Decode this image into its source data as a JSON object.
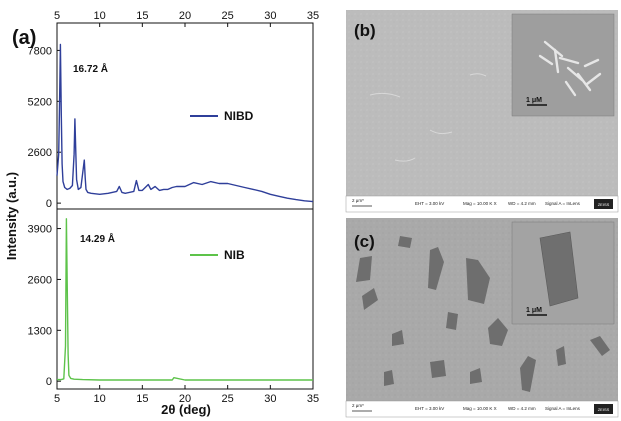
{
  "panels": {
    "a": "(a)",
    "b": "(b)",
    "c": "(c)"
  },
  "chart_data": [
    {
      "type": "line",
      "panel": "(a) top",
      "xlim": [
        5,
        35
      ],
      "x_ticks": [
        5,
        10,
        15,
        20,
        25,
        30,
        35
      ],
      "x_tick_labels": [
        "5",
        "10",
        "15",
        "20",
        "25",
        "30",
        "35"
      ],
      "x_ticks_position": "top",
      "ylim": [
        -300,
        9200
      ],
      "y_ticks": [
        0,
        2600,
        5200,
        7800
      ],
      "y_tick_labels": [
        "0",
        "2600",
        "5200",
        "7800"
      ],
      "series": [
        {
          "name": "NIBD",
          "color": "#2f3f9a",
          "x": [
            5.0,
            5.2,
            5.3,
            5.4,
            5.5,
            5.6,
            5.7,
            5.9,
            6.2,
            6.5,
            6.8,
            7.0,
            7.1,
            7.2,
            7.3,
            7.5,
            7.8,
            8.0,
            8.2,
            8.3,
            8.4,
            8.6,
            9.0,
            10.0,
            11.0,
            12.0,
            12.3,
            12.6,
            13.0,
            14.0,
            14.3,
            14.6,
            15.0,
            15.7,
            16.0,
            16.5,
            17.0,
            17.5,
            18.0,
            18.5,
            19.0,
            20.0,
            21.0,
            22.0,
            23.0,
            24.0,
            25.0,
            26.0,
            27.0,
            28.0,
            29.0,
            30.0,
            31.0,
            32.0,
            33.0,
            34.0,
            35.0
          ],
          "y": [
            1400,
            2500,
            5200,
            8100,
            4500,
            2000,
            1100,
            800,
            700,
            750,
            900,
            2500,
            4300,
            2600,
            1200,
            700,
            800,
            1500,
            2200,
            1300,
            700,
            550,
            500,
            450,
            500,
            600,
            850,
            550,
            500,
            600,
            1150,
            650,
            650,
            950,
            700,
            850,
            650,
            700,
            700,
            800,
            850,
            850,
            1050,
            950,
            1100,
            1000,
            1000,
            900,
            800,
            700,
            600,
            450,
            350,
            250,
            180,
            120,
            80
          ]
        }
      ],
      "annotations": [
        "16.72 Å"
      ]
    },
    {
      "type": "line",
      "panel": "(a) bottom",
      "xlim": [
        5,
        35
      ],
      "x_ticks": [
        5,
        10,
        15,
        20,
        25,
        30,
        35
      ],
      "x_tick_labels": [
        "5",
        "10",
        "15",
        "20",
        "25",
        "30",
        "35"
      ],
      "xlabel": "2θ (deg)",
      "ylim": [
        -200,
        4400
      ],
      "y_ticks": [
        0,
        1300,
        2600,
        3900
      ],
      "y_tick_labels": [
        "0",
        "1300",
        "2600",
        "3900"
      ],
      "series": [
        {
          "name": "NIB",
          "color": "#5dc34a",
          "x": [
            5.0,
            5.5,
            5.8,
            6.0,
            6.1,
            6.2,
            6.3,
            6.4,
            6.6,
            7.0,
            8.0,
            10.0,
            12.0,
            15.0,
            18.5,
            18.7,
            20.0,
            25.0,
            30.0,
            35.0
          ],
          "y": [
            40,
            40,
            60,
            900,
            4150,
            2500,
            700,
            150,
            70,
            50,
            40,
            30,
            30,
            30,
            30,
            90,
            30,
            30,
            30,
            30
          ]
        }
      ],
      "annotations": [
        "14.29 Å"
      ]
    }
  ],
  "ylabel": "Intensity (a.u.)",
  "sem": {
    "b": {
      "scale_main": "2 μm*",
      "inset_scale": "1 μM",
      "info": [
        "EHT = 3.00 kV",
        "Mag = 10.00 K X",
        "WD = 4.2 mm",
        "Signal A = InLens"
      ],
      "logo": "ZEISS"
    },
    "c": {
      "scale_main": "2 μm*",
      "inset_scale": "1 μM",
      "info": [
        "EHT = 3.00 kV",
        "Mag = 10.00 K X",
        "WD = 4.2 mm",
        "Signal A = InLens"
      ],
      "logo": "ZEISS"
    }
  }
}
